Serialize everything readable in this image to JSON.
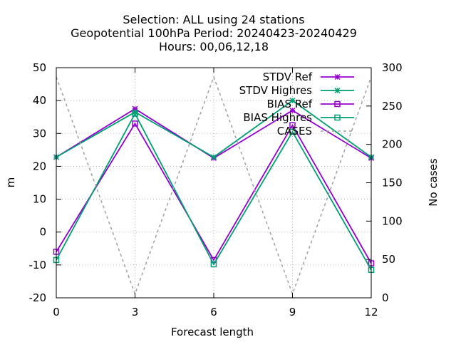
{
  "chart_data": {
    "type": "line",
    "title_lines": [
      "Selection: ALL using    24 stations",
      "Geopotential 100hPa   Period: 20240423-20240429",
      "Hours:  00,06,12,18"
    ],
    "xlabel": "Forecast length",
    "ylabel": "m",
    "y2label": "No cases",
    "x": [
      0,
      3,
      6,
      9,
      12
    ],
    "xlim": [
      0,
      12
    ],
    "ylim": [
      -20,
      50
    ],
    "y2lim": [
      0,
      300
    ],
    "xticks": [
      0,
      3,
      6,
      9,
      12
    ],
    "yticks": [
      -20,
      -10,
      0,
      10,
      20,
      30,
      40,
      50
    ],
    "y2ticks": [
      0,
      50,
      100,
      150,
      200,
      250,
      300
    ],
    "grid": true,
    "legend_position": "top-right",
    "series": [
      {
        "name": "STDV Ref",
        "axis": "y",
        "color": "#9400d3",
        "marker": "x-cross",
        "dashed": false,
        "values": [
          22.8,
          37.5,
          22.5,
          37.0,
          22.5
        ]
      },
      {
        "name": "STDV Highres",
        "axis": "y",
        "color": "#009e73",
        "marker": "x-cross",
        "dashed": false,
        "values": [
          22.8,
          36.5,
          22.8,
          40.0,
          22.8
        ]
      },
      {
        "name": "BIAS Ref",
        "axis": "y",
        "color": "#9400d3",
        "marker": "square",
        "dashed": false,
        "values": [
          -6.0,
          33.0,
          -8.5,
          32.5,
          -9.5
        ]
      },
      {
        "name": "BIAS Highres",
        "axis": "y",
        "color": "#009e73",
        "marker": "square",
        "dashed": false,
        "values": [
          -8.5,
          36.0,
          -9.8,
          30.5,
          -11.5
        ]
      },
      {
        "name": "CASES",
        "axis": "y2",
        "color": "#a0a0a0",
        "marker": "none",
        "dashed": true,
        "values": [
          288,
          5,
          288,
          5,
          288
        ]
      }
    ]
  }
}
